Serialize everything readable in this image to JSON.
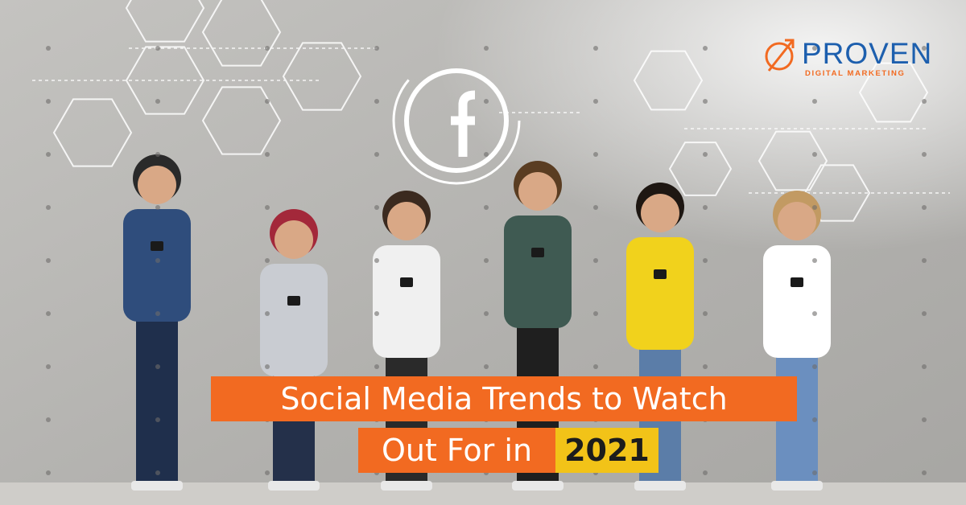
{
  "logo": {
    "name": "PROVEN",
    "tagline": "DIGITAL MARKETING"
  },
  "headline": {
    "line1": "Social Media Trends to Watch",
    "line2": "Out For in",
    "highlight": "2021"
  }
}
